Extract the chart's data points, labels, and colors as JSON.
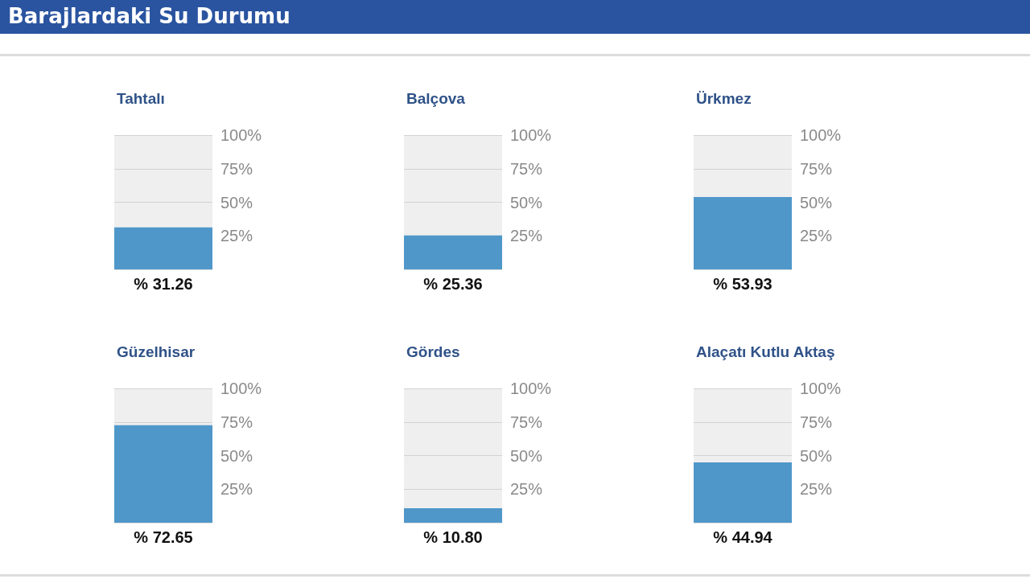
{
  "chart_data": [
    {
      "type": "other",
      "title": "Barajlardaki Su Durumu"
    },
    {
      "type": "bar",
      "title": "Tahtalı",
      "categories": [
        null
      ],
      "values": [
        31.26
      ],
      "value_labels": [
        "% 31.26"
      ],
      "color": "#4f97c9",
      "ylim": [
        0,
        100
      ],
      "yticks": [
        {
          "value": 25,
          "label": "25%"
        },
        {
          "value": 50,
          "label": "50%"
        },
        {
          "value": 75,
          "label": "75%"
        },
        {
          "value": 100,
          "label": "100%"
        }
      ],
      "grid": "y",
      "tick_labels": "y"
    },
    {
      "type": "bar",
      "title": "Balçova",
      "categories": [
        null
      ],
      "values": [
        25.36
      ],
      "value_labels": [
        "% 25.36"
      ],
      "color": "#4f97c9",
      "ylim": [
        0,
        100
      ],
      "yticks": [
        {
          "value": 25,
          "label": "25%"
        },
        {
          "value": 50,
          "label": "50%"
        },
        {
          "value": 75,
          "label": "75%"
        },
        {
          "value": 100,
          "label": "100%"
        }
      ],
      "grid": "y",
      "tick_labels": "y"
    },
    {
      "type": "bar",
      "title": "Ürkmez",
      "categories": [
        null
      ],
      "values": [
        53.93
      ],
      "value_labels": [
        "% 53.93"
      ],
      "color": "#4f97c9",
      "ylim": [
        0,
        100
      ],
      "yticks": [
        {
          "value": 25,
          "label": "25%"
        },
        {
          "value": 50,
          "label": "50%"
        },
        {
          "value": 75,
          "label": "75%"
        },
        {
          "value": 100,
          "label": "100%"
        }
      ],
      "grid": "y",
      "tick_labels": "y"
    },
    {
      "type": "bar",
      "title": "Güzelhisar",
      "categories": [
        null
      ],
      "values": [
        72.65
      ],
      "value_labels": [
        "% 72.65"
      ],
      "color": "#4f97c9",
      "ylim": [
        0,
        100
      ],
      "yticks": [
        {
          "value": 25,
          "label": "25%"
        },
        {
          "value": 50,
          "label": "50%"
        },
        {
          "value": 75,
          "label": "75%"
        },
        {
          "value": 100,
          "label": "100%"
        }
      ],
      "grid": "y",
      "tick_labels": "y"
    },
    {
      "type": "bar",
      "title": "Gördes",
      "categories": [
        null
      ],
      "values": [
        10.8
      ],
      "value_labels": [
        "% 10.80"
      ],
      "color": "#4f97c9",
      "ylim": [
        0,
        100
      ],
      "yticks": [
        {
          "value": 25,
          "label": "25%"
        },
        {
          "value": 50,
          "label": "50%"
        },
        {
          "value": 75,
          "label": "75%"
        },
        {
          "value": 100,
          "label": "100%"
        }
      ],
      "grid": "y",
      "tick_labels": "y"
    },
    {
      "type": "bar",
      "title": "Alaçatı Kutlu Aktaş",
      "categories": [
        null
      ],
      "values": [
        44.94
      ],
      "value_labels": [
        "% 44.94"
      ],
      "color": "#4f97c9",
      "ylim": [
        0,
        100
      ],
      "yticks": [
        {
          "value": 25,
          "label": "25%"
        },
        {
          "value": 50,
          "label": "50%"
        },
        {
          "value": 75,
          "label": "75%"
        },
        {
          "value": 100,
          "label": "100%"
        }
      ],
      "grid": "y",
      "tick_labels": "y"
    }
  ]
}
